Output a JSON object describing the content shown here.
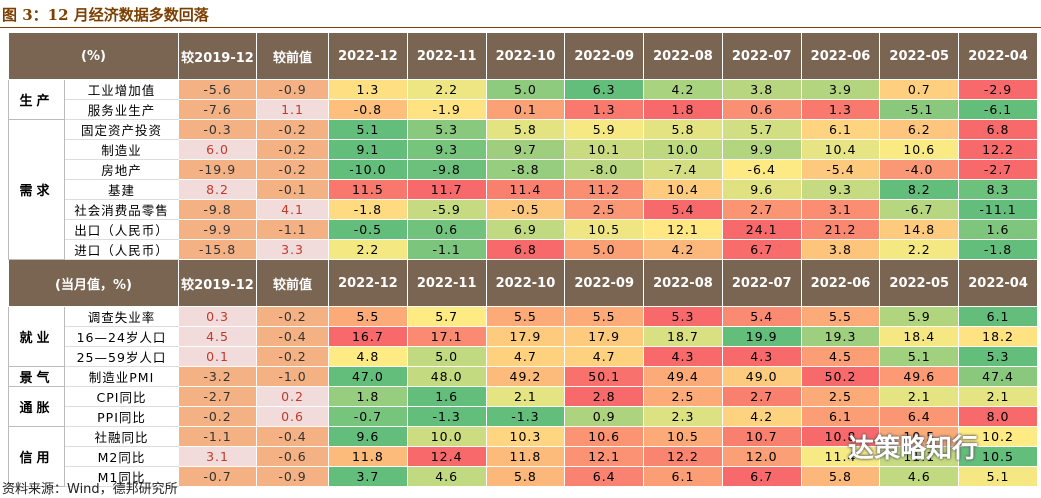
{
  "title": "图 3：12 月经济数据多数回落",
  "source": "资料来源：Wind，德邦研究所",
  "watermark": "达策略知行",
  "sections": [
    {
      "header": [
        "(%)",
        "较2019-12",
        "较前值",
        "2022-12",
        "2022-11",
        "2022-10",
        "2022-09",
        "2022-08",
        "2022-07",
        "2022-06",
        "2022-05",
        "2022-04"
      ],
      "groups": [
        {
          "name": "生产",
          "rows": [
            {
              "label": "工业增加值",
              "high_green": true,
              "values": [
                "-5.6",
                "-0.9",
                "1.3",
                "2.2",
                "5.0",
                "6.3",
                "4.2",
                "3.8",
                "3.9",
                "0.7",
                "-2.9"
              ]
            },
            {
              "label": "服务业生产",
              "values": [
                "-7.6",
                "1.1",
                "-0.8",
                "-1.9",
                "0.1",
                "1.3",
                "1.8",
                "0.6",
                "1.3",
                "-5.1",
                "-6.1"
              ]
            }
          ]
        },
        {
          "name": "需求",
          "rows": [
            {
              "label": "固定资产投资",
              "values": [
                "-0.3",
                "-0.2",
                "5.1",
                "5.3",
                "5.8",
                "5.9",
                "5.8",
                "5.7",
                "6.1",
                "6.2",
                "6.8"
              ]
            },
            {
              "label": "制造业",
              "values": [
                "6.0",
                "-0.2",
                "9.1",
                "9.3",
                "9.7",
                "10.1",
                "10.0",
                "9.9",
                "10.4",
                "10.6",
                "12.2"
              ]
            },
            {
              "label": "房地产",
              "values": [
                "-19.9",
                "-0.2",
                "-10.0",
                "-9.8",
                "-8.8",
                "-8.0",
                "-7.4",
                "-6.4",
                "-5.4",
                "-4.0",
                "-2.7"
              ]
            },
            {
              "label": "基建",
              "values": [
                "8.2",
                "-0.1",
                "11.5",
                "11.7",
                "11.4",
                "11.2",
                "10.4",
                "9.6",
                "9.3",
                "8.2",
                "8.3"
              ]
            },
            {
              "label": "社会消费品零售",
              "values": [
                "-9.8",
                "4.1",
                "-1.8",
                "-5.9",
                "-0.5",
                "2.5",
                "5.4",
                "2.7",
                "3.1",
                "-6.7",
                "-11.1"
              ]
            },
            {
              "label": "出口（人民币）",
              "values": [
                "-9.9",
                "-1.1",
                "-0.5",
                "0.6",
                "6.9",
                "10.5",
                "12.1",
                "24.1",
                "21.2",
                "14.8",
                "1.6"
              ]
            },
            {
              "label": "进口（人民币）",
              "values": [
                "-15.8",
                "3.3",
                "2.2",
                "-1.1",
                "6.8",
                "5.0",
                "4.2",
                "6.7",
                "3.8",
                "2.2",
                "-1.8"
              ]
            }
          ]
        }
      ]
    },
    {
      "header": [
        "(当月值，%)",
        "较2019-12",
        "较前值",
        "2022-12",
        "2022-11",
        "2022-10",
        "2022-09",
        "2022-08",
        "2022-07",
        "2022-06",
        "2022-05",
        "2022-04"
      ],
      "groups": [
        {
          "name": "就业",
          "rows": [
            {
              "label": "调查失业率",
              "high_green": true,
              "values": [
                "0.3",
                "-0.2",
                "5.5",
                "5.7",
                "5.5",
                "5.5",
                "5.3",
                "5.4",
                "5.5",
                "5.9",
                "6.1"
              ]
            },
            {
              "label": "16—24岁人口",
              "high_green": true,
              "values": [
                "4.5",
                "-0.4",
                "16.7",
                "17.1",
                "17.9",
                "17.9",
                "18.7",
                "19.9",
                "19.3",
                "18.4",
                "18.2"
              ]
            },
            {
              "label": "25—59岁人口",
              "high_green": true,
              "values": [
                "0.1",
                "-0.2",
                "4.8",
                "5.0",
                "4.7",
                "4.7",
                "4.3",
                "4.3",
                "4.5",
                "5.1",
                "5.3"
              ]
            }
          ]
        },
        {
          "name": "景气",
          "rows": [
            {
              "label": "制造业PMI",
              "values": [
                "-3.2",
                "-1.0",
                "47.0",
                "48.0",
                "49.2",
                "50.1",
                "49.4",
                "49.0",
                "50.2",
                "49.6",
                "47.4"
              ]
            }
          ]
        },
        {
          "name": "通胀",
          "rows": [
            {
              "label": "CPI同比",
              "values": [
                "-2.7",
                "0.2",
                "1.8",
                "1.6",
                "2.1",
                "2.8",
                "2.5",
                "2.7",
                "2.5",
                "2.1",
                "2.1"
              ]
            },
            {
              "label": "PPI同比",
              "values": [
                "-0.2",
                "0.6",
                "-0.7",
                "-1.3",
                "-1.3",
                "0.9",
                "2.3",
                "4.2",
                "6.1",
                "6.4",
                "8.0"
              ]
            }
          ]
        },
        {
          "name": "信用",
          "rows": [
            {
              "label": "社融同比",
              "values": [
                "-1.1",
                "-0.4",
                "9.6",
                "10.0",
                "10.3",
                "10.6",
                "10.5",
                "10.7",
                "10.8",
                "10.5",
                "10.2"
              ]
            },
            {
              "label": "M2同比",
              "values": [
                "3.1",
                "-0.6",
                "11.8",
                "12.4",
                "11.8",
                "12.1",
                "12.2",
                "12.0",
                "11.4",
                "11.1",
                "10.5"
              ]
            },
            {
              "label": "M1同比",
              "values": [
                "-0.7",
                "-0.9",
                "3.7",
                "4.6",
                "5.8",
                "6.4",
                "6.1",
                "6.7",
                "5.8",
                "4.6",
                "5.1"
              ]
            }
          ]
        }
      ]
    }
  ]
}
